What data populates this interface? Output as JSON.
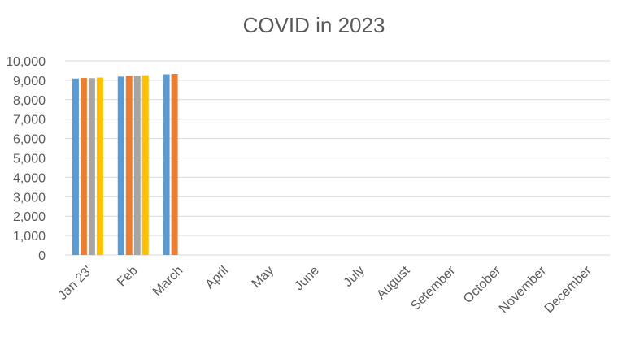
{
  "chart_data": {
    "type": "bar",
    "title": "COVID in 2023",
    "xlabel": "",
    "ylabel": "",
    "categories": [
      "Jan 23'",
      "Feb",
      "March",
      "April",
      "May",
      "June",
      "July",
      "August",
      "Setember",
      "October",
      "November",
      "December"
    ],
    "series": [
      {
        "color": "#5b9bd5",
        "values": [
          9090,
          9190,
          9310,
          null,
          null,
          null,
          null,
          null,
          null,
          null,
          null,
          null
        ]
      },
      {
        "color": "#ed7d31",
        "values": [
          9120,
          9230,
          9330,
          null,
          null,
          null,
          null,
          null,
          null,
          null,
          null,
          null
        ]
      },
      {
        "color": "#a5a5a5",
        "values": [
          9110,
          9230,
          null,
          null,
          null,
          null,
          null,
          null,
          null,
          null,
          null,
          null
        ]
      },
      {
        "color": "#ffc000",
        "values": [
          9140,
          9260,
          null,
          null,
          null,
          null,
          null,
          null,
          null,
          null,
          null,
          null
        ]
      }
    ],
    "ylim": [
      0,
      10000
    ],
    "yticks": [
      0,
      1000,
      2000,
      3000,
      4000,
      5000,
      6000,
      7000,
      8000,
      9000,
      10000
    ],
    "ytick_labels": [
      "0",
      "1,000",
      "2,000",
      "3,000",
      "4,000",
      "5,000",
      "6,000",
      "7,000",
      "8,000",
      "9,000",
      "10,000"
    ],
    "grid": true,
    "legend": "none"
  }
}
